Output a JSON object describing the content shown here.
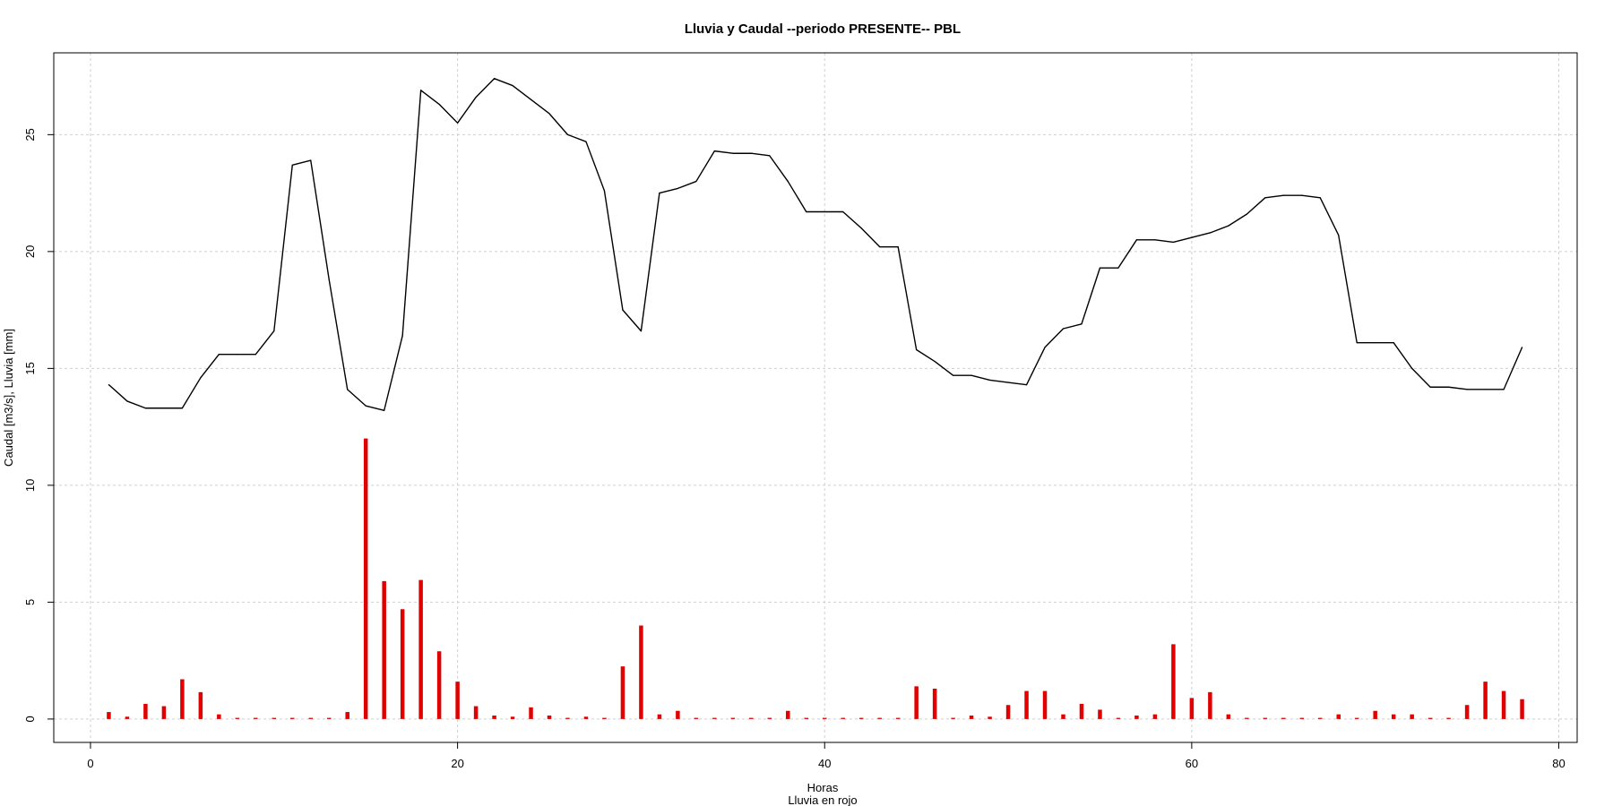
{
  "chart_data": {
    "type": "line",
    "title": "Lluvia y Caudal --periodo PRESENTE-- PBL",
    "xlabel": "Horas",
    "xlabel2": "Lluvia en rojo",
    "ylabel": "Caudal [m3/s], Lluvia [mm]",
    "xlim": [
      -2,
      81
    ],
    "ylim": [
      -1,
      28.5
    ],
    "xticks": [
      0,
      20,
      40,
      60,
      80
    ],
    "yticks": [
      0,
      5,
      10,
      15,
      20,
      25
    ],
    "grid": true,
    "colors": {
      "caudal": "#000000",
      "lluvia": "#e00000",
      "grid": "#cfcfcf"
    },
    "series": [
      {
        "type": "line",
        "x": [
          1,
          2,
          3,
          4,
          5,
          6,
          7,
          8,
          9,
          10,
          11,
          12,
          13,
          14,
          15,
          16,
          17,
          18,
          19,
          20,
          21,
          22,
          23,
          24,
          25,
          26,
          27,
          28,
          29,
          30,
          31,
          32,
          33,
          34,
          35,
          36,
          37,
          38,
          39,
          40,
          41,
          42,
          43,
          44,
          45,
          46,
          47,
          48,
          49,
          50,
          51,
          52,
          53,
          54,
          55,
          56,
          57,
          58,
          59,
          60,
          61,
          62,
          63,
          64,
          65,
          66,
          67,
          68,
          69,
          70,
          71,
          72,
          73,
          74,
          75,
          76,
          77,
          78
        ],
        "values": [
          14.3,
          13.6,
          13.3,
          13.3,
          13.3,
          14.6,
          15.6,
          15.6,
          15.6,
          16.6,
          23.7,
          23.9,
          18.8,
          14.1,
          13.4,
          13.2,
          16.4,
          26.9,
          26.3,
          25.5,
          26.6,
          27.4,
          27.1,
          26.5,
          25.9,
          25.0,
          24.7,
          22.6,
          17.5,
          16.6,
          22.5,
          22.7,
          23.0,
          24.3,
          24.2,
          24.2,
          24.1,
          23.0,
          21.7,
          21.7,
          21.7,
          21.0,
          20.2,
          20.2,
          15.8,
          15.3,
          14.7,
          14.7,
          14.5,
          14.4,
          14.3,
          15.9,
          16.7,
          16.9,
          19.3,
          19.3,
          20.5,
          20.5,
          20.4,
          20.6,
          20.8,
          21.1,
          21.6,
          22.3,
          22.4,
          22.4,
          22.3,
          20.7,
          16.1,
          16.1,
          16.1,
          15.0,
          14.2,
          14.2,
          14.1,
          14.1,
          14.1,
          15.9
        ]
      },
      {
        "type": "bar",
        "x": [
          1,
          2,
          3,
          4,
          5,
          6,
          7,
          8,
          9,
          10,
          11,
          12,
          13,
          14,
          15,
          16,
          17,
          18,
          19,
          20,
          21,
          22,
          23,
          24,
          25,
          26,
          27,
          28,
          29,
          30,
          31,
          32,
          33,
          34,
          35,
          36,
          37,
          38,
          39,
          40,
          41,
          42,
          43,
          44,
          45,
          46,
          47,
          48,
          49,
          50,
          51,
          52,
          53,
          54,
          55,
          56,
          57,
          58,
          59,
          60,
          61,
          62,
          63,
          64,
          65,
          66,
          67,
          68,
          69,
          70,
          71,
          72,
          73,
          74,
          75,
          76,
          77,
          78
        ],
        "values": [
          0.3,
          0.1,
          0.65,
          0.55,
          1.7,
          1.15,
          0.2,
          0.05,
          0.05,
          0.05,
          0.05,
          0.05,
          0.05,
          0.3,
          12.0,
          5.9,
          4.7,
          5.95,
          2.9,
          1.6,
          0.55,
          0.15,
          0.1,
          0.5,
          0.15,
          0.05,
          0.1,
          0.05,
          2.25,
          4.0,
          0.2,
          0.35,
          0.05,
          0.05,
          0.05,
          0.05,
          0.05,
          0.35,
          0.05,
          0.05,
          0.05,
          0.05,
          0.05,
          0.05,
          1.4,
          1.3,
          0.05,
          0.15,
          0.1,
          0.6,
          1.2,
          1.2,
          0.2,
          0.65,
          0.4,
          0.05,
          0.15,
          0.2,
          3.2,
          0.9,
          1.15,
          0.2,
          0.05,
          0.05,
          0.05,
          0.05,
          0.05,
          0.2,
          0.05,
          0.35,
          0.2,
          0.2,
          0.05,
          0.05,
          0.6,
          1.6,
          1.2,
          0.85
        ]
      }
    ]
  }
}
